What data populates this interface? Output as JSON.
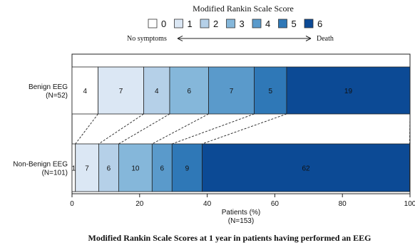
{
  "chart_data": {
    "type": "stacked-bar-horizontal",
    "title": "Modified Rankin Scale Score",
    "caption": "Modified Rankin Scale Scores at 1 year in patients having performed an EEG",
    "legend": {
      "categories": [
        "0",
        "1",
        "2",
        "3",
        "4",
        "5",
        "6"
      ],
      "colors": [
        "#ffffff",
        "#dbe7f4",
        "#b5d0e8",
        "#85b7da",
        "#5a9acb",
        "#2f78b7",
        "#0c4a95"
      ],
      "left_label": "No symptoms",
      "right_label": "Death",
      "placement": "top"
    },
    "xlabel": "Patients (%)",
    "xlabel_sub": "(N=153)",
    "xlim": [
      0,
      100
    ],
    "xticks": [
      "0",
      "20",
      "40",
      "60",
      "80",
      "100"
    ],
    "rows": [
      {
        "label": "Benign EEG",
        "sublabel": "(N=52)",
        "counts": [
          4,
          7,
          4,
          6,
          7,
          5,
          19
        ],
        "percents": [
          7.7,
          13.5,
          7.7,
          11.5,
          13.5,
          9.6,
          36.5
        ]
      },
      {
        "label": "Non-Benign EEG",
        "sublabel": "(N=101)",
        "counts": [
          1,
          7,
          6,
          10,
          6,
          9,
          62
        ],
        "percents": [
          1.0,
          6.9,
          5.9,
          9.9,
          5.9,
          8.9,
          61.4
        ]
      }
    ],
    "connectors": "dashed"
  }
}
